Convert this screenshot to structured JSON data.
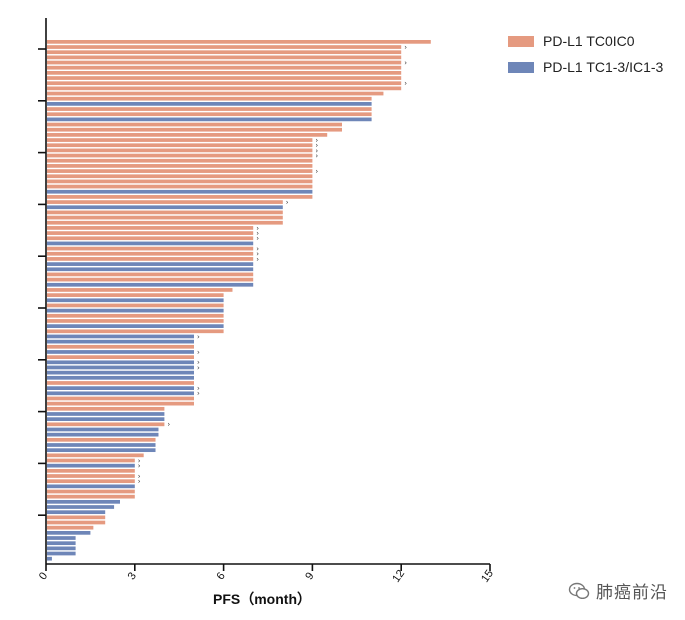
{
  "colors": {
    "tc0ic0": "#E59A80",
    "tc13ic13": "#6E86B8",
    "axis": "#111111"
  },
  "legend": [
    {
      "label": "PD-L1 TC0IC0",
      "color_key": "tc0ic0"
    },
    {
      "label": "PD-L1 TC1-3/IC1-3",
      "color_key": "tc13ic13"
    }
  ],
  "watermark": {
    "text": "肺癌前沿",
    "icon": "wechat-icon"
  },
  "chart_data": {
    "type": "bar",
    "orientation": "horizontal",
    "xlabel": "PFS（month）",
    "xlim": [
      0,
      15
    ],
    "xticks": [
      0,
      3,
      6,
      9,
      12,
      15
    ],
    "grid": false,
    "legend_position": "top-right",
    "censor_marker": "›",
    "bars": [
      {
        "value": 13.0,
        "group": "tc0ic0",
        "censored": false
      },
      {
        "value": 12.0,
        "group": "tc0ic0",
        "censored": true
      },
      {
        "value": 12.0,
        "group": "tc0ic0",
        "censored": false
      },
      {
        "value": 12.0,
        "group": "tc0ic0",
        "censored": false
      },
      {
        "value": 12.0,
        "group": "tc0ic0",
        "censored": true
      },
      {
        "value": 12.0,
        "group": "tc0ic0",
        "censored": false
      },
      {
        "value": 12.0,
        "group": "tc0ic0",
        "censored": false
      },
      {
        "value": 12.0,
        "group": "tc0ic0",
        "censored": false
      },
      {
        "value": 12.0,
        "group": "tc0ic0",
        "censored": true
      },
      {
        "value": 12.0,
        "group": "tc0ic0",
        "censored": false
      },
      {
        "value": 11.4,
        "group": "tc0ic0",
        "censored": false
      },
      {
        "value": 11.0,
        "group": "tc0ic0",
        "censored": false
      },
      {
        "value": 11.0,
        "group": "tc13ic13",
        "censored": false
      },
      {
        "value": 11.0,
        "group": "tc0ic0",
        "censored": false
      },
      {
        "value": 11.0,
        "group": "tc0ic0",
        "censored": false
      },
      {
        "value": 11.0,
        "group": "tc13ic13",
        "censored": false
      },
      {
        "value": 10.0,
        "group": "tc0ic0",
        "censored": false
      },
      {
        "value": 10.0,
        "group": "tc0ic0",
        "censored": false
      },
      {
        "value": 9.5,
        "group": "tc0ic0",
        "censored": false
      },
      {
        "value": 9.0,
        "group": "tc0ic0",
        "censored": true
      },
      {
        "value": 9.0,
        "group": "tc0ic0",
        "censored": true
      },
      {
        "value": 9.0,
        "group": "tc0ic0",
        "censored": true
      },
      {
        "value": 9.0,
        "group": "tc0ic0",
        "censored": true
      },
      {
        "value": 9.0,
        "group": "tc0ic0",
        "censored": false
      },
      {
        "value": 9.0,
        "group": "tc0ic0",
        "censored": false
      },
      {
        "value": 9.0,
        "group": "tc0ic0",
        "censored": true
      },
      {
        "value": 9.0,
        "group": "tc0ic0",
        "censored": false
      },
      {
        "value": 9.0,
        "group": "tc0ic0",
        "censored": false
      },
      {
        "value": 9.0,
        "group": "tc0ic0",
        "censored": false
      },
      {
        "value": 9.0,
        "group": "tc13ic13",
        "censored": false
      },
      {
        "value": 9.0,
        "group": "tc0ic0",
        "censored": false
      },
      {
        "value": 8.0,
        "group": "tc0ic0",
        "censored": true
      },
      {
        "value": 8.0,
        "group": "tc13ic13",
        "censored": false
      },
      {
        "value": 8.0,
        "group": "tc0ic0",
        "censored": false
      },
      {
        "value": 8.0,
        "group": "tc0ic0",
        "censored": false
      },
      {
        "value": 8.0,
        "group": "tc0ic0",
        "censored": false
      },
      {
        "value": 7.0,
        "group": "tc0ic0",
        "censored": true
      },
      {
        "value": 7.0,
        "group": "tc0ic0",
        "censored": true
      },
      {
        "value": 7.0,
        "group": "tc0ic0",
        "censored": true
      },
      {
        "value": 7.0,
        "group": "tc13ic13",
        "censored": false
      },
      {
        "value": 7.0,
        "group": "tc0ic0",
        "censored": true
      },
      {
        "value": 7.0,
        "group": "tc0ic0",
        "censored": true
      },
      {
        "value": 7.0,
        "group": "tc0ic0",
        "censored": true
      },
      {
        "value": 7.0,
        "group": "tc13ic13",
        "censored": false
      },
      {
        "value": 7.0,
        "group": "tc13ic13",
        "censored": false
      },
      {
        "value": 7.0,
        "group": "tc0ic0",
        "censored": false
      },
      {
        "value": 7.0,
        "group": "tc0ic0",
        "censored": false
      },
      {
        "value": 7.0,
        "group": "tc13ic13",
        "censored": false
      },
      {
        "value": 6.3,
        "group": "tc0ic0",
        "censored": false
      },
      {
        "value": 6.0,
        "group": "tc0ic0",
        "censored": false
      },
      {
        "value": 6.0,
        "group": "tc13ic13",
        "censored": false
      },
      {
        "value": 6.0,
        "group": "tc0ic0",
        "censored": false
      },
      {
        "value": 6.0,
        "group": "tc13ic13",
        "censored": false
      },
      {
        "value": 6.0,
        "group": "tc0ic0",
        "censored": false
      },
      {
        "value": 6.0,
        "group": "tc0ic0",
        "censored": false
      },
      {
        "value": 6.0,
        "group": "tc13ic13",
        "censored": false
      },
      {
        "value": 6.0,
        "group": "tc0ic0",
        "censored": false
      },
      {
        "value": 5.0,
        "group": "tc13ic13",
        "censored": true
      },
      {
        "value": 5.0,
        "group": "tc13ic13",
        "censored": false
      },
      {
        "value": 5.0,
        "group": "tc0ic0",
        "censored": false
      },
      {
        "value": 5.0,
        "group": "tc13ic13",
        "censored": true
      },
      {
        "value": 5.0,
        "group": "tc0ic0",
        "censored": false
      },
      {
        "value": 5.0,
        "group": "tc13ic13",
        "censored": true
      },
      {
        "value": 5.0,
        "group": "tc13ic13",
        "censored": true
      },
      {
        "value": 5.0,
        "group": "tc13ic13",
        "censored": false
      },
      {
        "value": 5.0,
        "group": "tc13ic13",
        "censored": false
      },
      {
        "value": 5.0,
        "group": "tc0ic0",
        "censored": false
      },
      {
        "value": 5.0,
        "group": "tc13ic13",
        "censored": true
      },
      {
        "value": 5.0,
        "group": "tc13ic13",
        "censored": true
      },
      {
        "value": 5.0,
        "group": "tc0ic0",
        "censored": false
      },
      {
        "value": 5.0,
        "group": "tc0ic0",
        "censored": false
      },
      {
        "value": 4.0,
        "group": "tc0ic0",
        "censored": false
      },
      {
        "value": 4.0,
        "group": "tc13ic13",
        "censored": false
      },
      {
        "value": 4.0,
        "group": "tc13ic13",
        "censored": false
      },
      {
        "value": 4.0,
        "group": "tc0ic0",
        "censored": true
      },
      {
        "value": 3.8,
        "group": "tc13ic13",
        "censored": false
      },
      {
        "value": 3.8,
        "group": "tc13ic13",
        "censored": false
      },
      {
        "value": 3.7,
        "group": "tc0ic0",
        "censored": false
      },
      {
        "value": 3.7,
        "group": "tc13ic13",
        "censored": false
      },
      {
        "value": 3.7,
        "group": "tc13ic13",
        "censored": false
      },
      {
        "value": 3.3,
        "group": "tc0ic0",
        "censored": false
      },
      {
        "value": 3.0,
        "group": "tc0ic0",
        "censored": true
      },
      {
        "value": 3.0,
        "group": "tc13ic13",
        "censored": true
      },
      {
        "value": 3.0,
        "group": "tc0ic0",
        "censored": false
      },
      {
        "value": 3.0,
        "group": "tc0ic0",
        "censored": true
      },
      {
        "value": 3.0,
        "group": "tc0ic0",
        "censored": true
      },
      {
        "value": 3.0,
        "group": "tc13ic13",
        "censored": false
      },
      {
        "value": 3.0,
        "group": "tc0ic0",
        "censored": false
      },
      {
        "value": 3.0,
        "group": "tc0ic0",
        "censored": false
      },
      {
        "value": 2.5,
        "group": "tc13ic13",
        "censored": false
      },
      {
        "value": 2.3,
        "group": "tc13ic13",
        "censored": false
      },
      {
        "value": 2.0,
        "group": "tc13ic13",
        "censored": false
      },
      {
        "value": 2.0,
        "group": "tc0ic0",
        "censored": false
      },
      {
        "value": 2.0,
        "group": "tc0ic0",
        "censored": false
      },
      {
        "value": 1.6,
        "group": "tc0ic0",
        "censored": false
      },
      {
        "value": 1.5,
        "group": "tc13ic13",
        "censored": false
      },
      {
        "value": 1.0,
        "group": "tc13ic13",
        "censored": false
      },
      {
        "value": 1.0,
        "group": "tc13ic13",
        "censored": false
      },
      {
        "value": 1.0,
        "group": "tc13ic13",
        "censored": false
      },
      {
        "value": 1.0,
        "group": "tc13ic13",
        "censored": false
      },
      {
        "value": 0.2,
        "group": "tc13ic13",
        "censored": false
      }
    ]
  }
}
